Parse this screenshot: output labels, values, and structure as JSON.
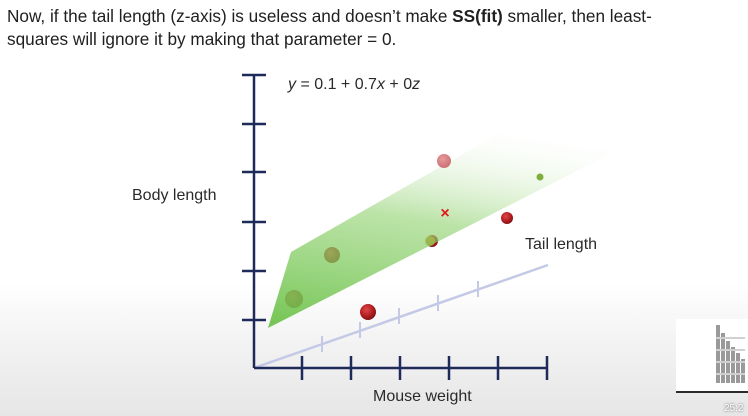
{
  "heading": {
    "line1_pre": "Now, if the tail length (z-axis) is useless and doesn’t make ",
    "line1_bold": "SS(fit)",
    "line1_post": " smaller, then least-",
    "line2": "squares will ignore it by making that parameter = 0."
  },
  "equation": {
    "lhs": "y",
    "part1": " = 0.1 + 0.7",
    "x": "x",
    "part2": " + 0",
    "z": "z"
  },
  "axes": {
    "y_label": "Body length",
    "z_label": "Tail length",
    "x_label": "Mouse weight"
  },
  "colors": {
    "plane": "#6cc24a",
    "point": "#b01d20",
    "axis": "#1e2a5a",
    "z_axis": "#c4c9e6"
  },
  "markers": {
    "prediction_glyph": "×"
  },
  "thumbnail": {
    "icon": "chart-thumbnail-icon"
  },
  "timestamp": "25:2"
}
